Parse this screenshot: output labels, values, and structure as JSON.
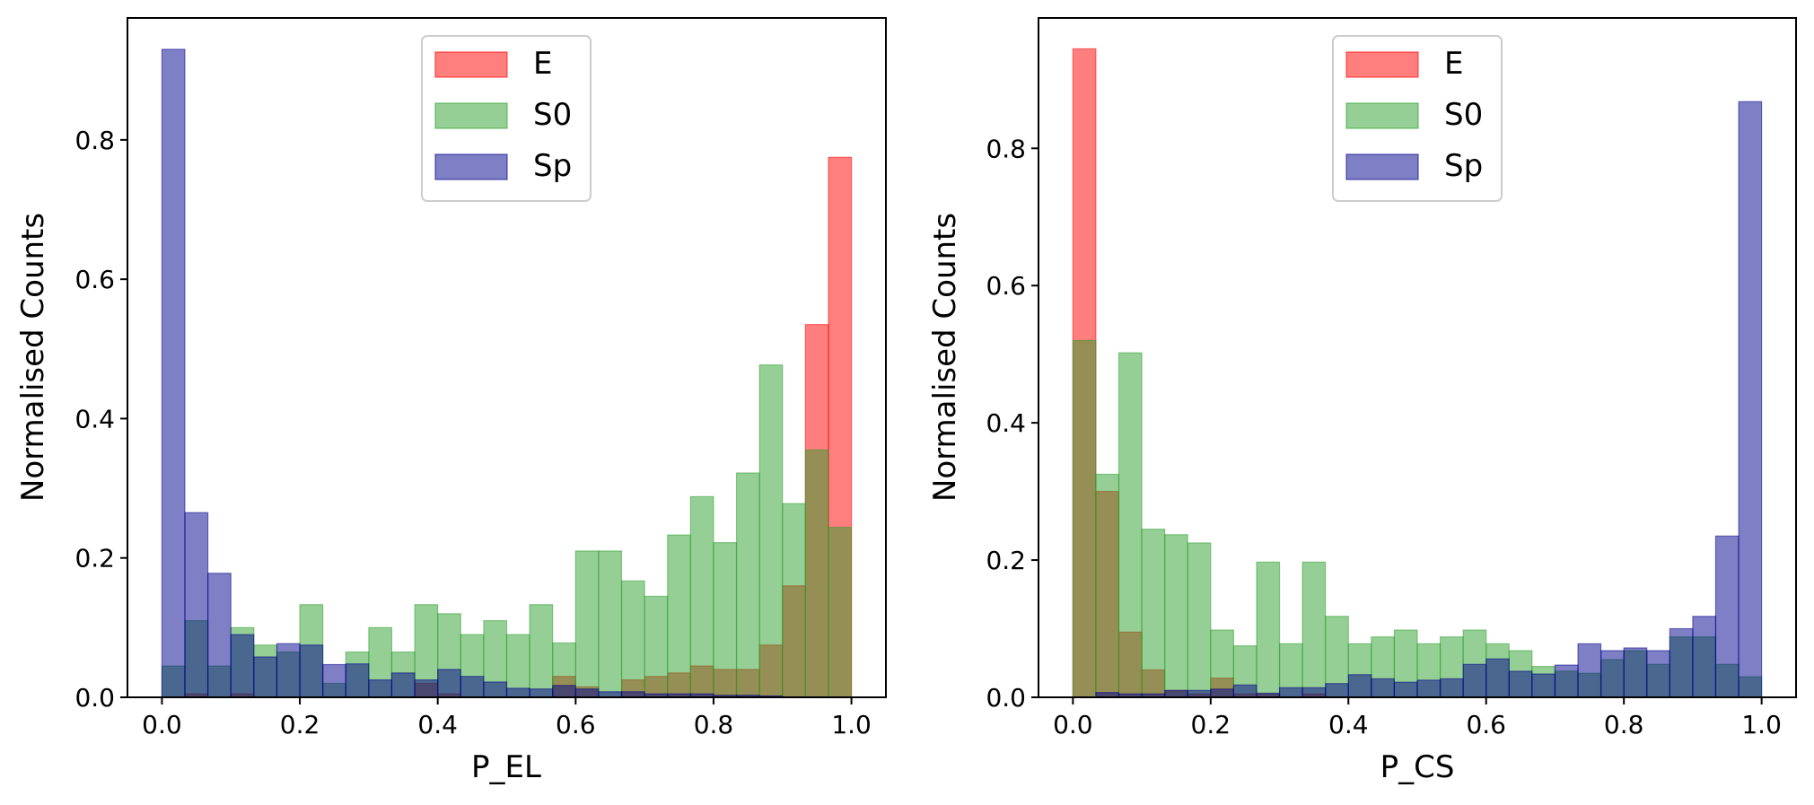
{
  "colors": {
    "E": "#ff0000",
    "S0": "#2ca02c",
    "Sp": "#00008b",
    "bar_alpha": 0.5
  },
  "chart_data": [
    {
      "type": "bar",
      "histogram": true,
      "xlabel": "P_EL",
      "ylabel": "Normalised Counts",
      "xlim": [
        -0.05,
        1.05
      ],
      "ylim": [
        0,
        0.975
      ],
      "xticks": [
        "0.0",
        "0.2",
        "0.4",
        "0.6",
        "0.8",
        "1.0"
      ],
      "yticks": [
        "0.0",
        "0.2",
        "0.4",
        "0.6",
        "0.8"
      ],
      "legend": {
        "position": "top-center",
        "entries": [
          "E",
          "S0",
          "Sp"
        ]
      },
      "bin_width": 0.0333,
      "bin_starts": [
        0.0,
        0.0333,
        0.0667,
        0.1,
        0.1333,
        0.1667,
        0.2,
        0.2333,
        0.2667,
        0.3,
        0.3333,
        0.3667,
        0.4,
        0.4333,
        0.4667,
        0.5,
        0.5333,
        0.5667,
        0.6,
        0.6333,
        0.6667,
        0.7,
        0.7333,
        0.7667,
        0.8,
        0.8333,
        0.8667,
        0.9,
        0.9333,
        0.9667
      ],
      "series": [
        {
          "name": "E",
          "values": [
            0.0,
            0.005,
            0.0,
            0.005,
            0.0,
            0.0,
            0.0,
            0.0,
            0.0,
            0.0,
            0.0,
            0.02,
            0.005,
            0.0,
            0.0,
            0.0,
            0.0,
            0.03,
            0.015,
            0.0,
            0.025,
            0.03,
            0.035,
            0.045,
            0.04,
            0.04,
            0.075,
            0.16,
            0.535,
            0.775
          ]
        },
        {
          "name": "S0",
          "values": [
            0.045,
            0.11,
            0.045,
            0.1,
            0.075,
            0.065,
            0.133,
            0.02,
            0.065,
            0.1,
            0.065,
            0.133,
            0.12,
            0.09,
            0.11,
            0.09,
            0.133,
            0.078,
            0.21,
            0.21,
            0.167,
            0.145,
            0.233,
            0.288,
            0.222,
            0.322,
            0.477,
            0.278,
            0.355,
            0.244
          ]
        },
        {
          "name": "Sp",
          "values": [
            0.93,
            0.265,
            0.178,
            0.09,
            0.058,
            0.077,
            0.075,
            0.047,
            0.048,
            0.025,
            0.035,
            0.025,
            0.04,
            0.03,
            0.022,
            0.013,
            0.012,
            0.017,
            0.012,
            0.008,
            0.008,
            0.005,
            0.005,
            0.005,
            0.003,
            0.003,
            0.002,
            0.0,
            0.0,
            0.0
          ]
        }
      ]
    },
    {
      "type": "bar",
      "histogram": true,
      "xlabel": "P_CS",
      "ylabel": "Normalised Counts",
      "xlim": [
        -0.05,
        1.05
      ],
      "ylim": [
        0,
        0.99
      ],
      "xticks": [
        "0.0",
        "0.2",
        "0.4",
        "0.6",
        "0.8",
        "1.0"
      ],
      "yticks": [
        "0.0",
        "0.2",
        "0.4",
        "0.6",
        "0.8"
      ],
      "legend": {
        "position": "top-center",
        "entries": [
          "E",
          "S0",
          "Sp"
        ]
      },
      "bin_width": 0.0333,
      "bin_starts": [
        0.0,
        0.0333,
        0.0667,
        0.1,
        0.1333,
        0.1667,
        0.2,
        0.2333,
        0.2667,
        0.3,
        0.3333,
        0.3667,
        0.4,
        0.4333,
        0.4667,
        0.5,
        0.5333,
        0.5667,
        0.6,
        0.6333,
        0.6667,
        0.7,
        0.7333,
        0.7667,
        0.8,
        0.8333,
        0.8667,
        0.9,
        0.9333,
        0.9667
      ],
      "series": [
        {
          "name": "E",
          "values": [
            0.945,
            0.3,
            0.095,
            0.04,
            0.01,
            0.005,
            0.028,
            0.005,
            0.005,
            0.0,
            0.005,
            0.0,
            0.0,
            0.0,
            0.0,
            0.0,
            0.0,
            0.0,
            0.0,
            0.0,
            0.0,
            0.0,
            0.0,
            0.0,
            0.0,
            0.0,
            0.0,
            0.0,
            0.0,
            0.0
          ]
        },
        {
          "name": "S0",
          "values": [
            0.52,
            0.325,
            0.502,
            0.245,
            0.237,
            0.225,
            0.098,
            0.075,
            0.197,
            0.078,
            0.197,
            0.118,
            0.078,
            0.088,
            0.098,
            0.078,
            0.088,
            0.098,
            0.078,
            0.068,
            0.045,
            0.038,
            0.035,
            0.055,
            0.068,
            0.048,
            0.088,
            0.088,
            0.048,
            0.03
          ]
        },
        {
          "name": "Sp",
          "values": [
            0.0,
            0.007,
            0.005,
            0.005,
            0.01,
            0.01,
            0.012,
            0.018,
            0.006,
            0.014,
            0.014,
            0.02,
            0.033,
            0.027,
            0.022,
            0.025,
            0.027,
            0.048,
            0.056,
            0.038,
            0.034,
            0.047,
            0.078,
            0.068,
            0.072,
            0.068,
            0.1,
            0.118,
            0.235,
            0.868
          ]
        }
      ]
    }
  ]
}
